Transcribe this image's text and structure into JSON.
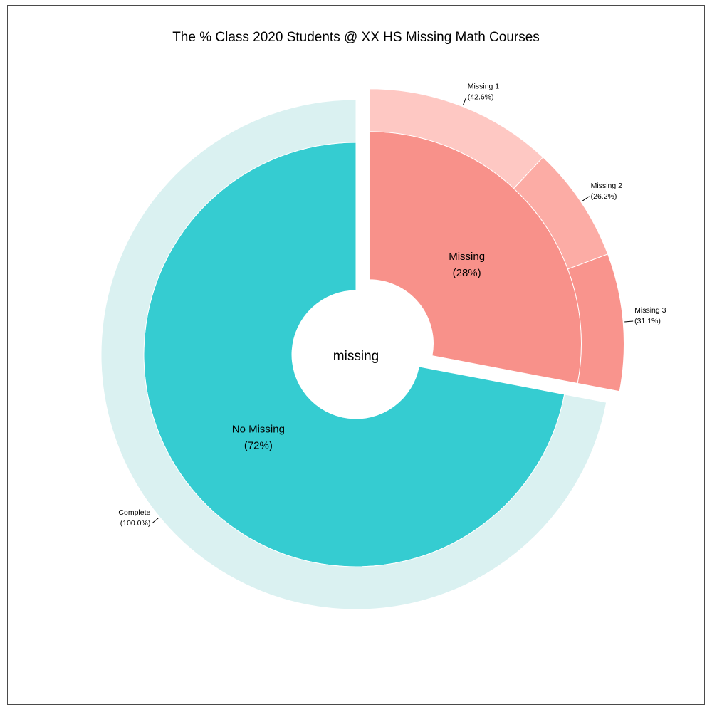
{
  "chart_data": {
    "type": "pie",
    "title": "The % Class 2020 Students @ XX HS Missing Math Courses",
    "center_label": "missing",
    "inner": [
      {
        "name": "Missing",
        "pct_label": "(28%)",
        "value": 28,
        "color": "#F8918A"
      },
      {
        "name": "No Missing",
        "pct_label": "(72%)",
        "value": 72,
        "color": "#35CCD1"
      }
    ],
    "outer": [
      {
        "name": "Missing 1",
        "pct_label": "(42.6%)",
        "value": 42.6,
        "parent": "Missing",
        "color": "#FEC8C3"
      },
      {
        "name": "Missing 2",
        "pct_label": "(26.2%)",
        "value": 26.2,
        "parent": "Missing",
        "color": "#FCACA5"
      },
      {
        "name": "Missing 3",
        "pct_label": "(31.1%)",
        "value": 31.1,
        "parent": "Missing",
        "color": "#F9948D"
      },
      {
        "name": "Complete",
        "pct_label": "(100.0%)",
        "value": 100.0,
        "parent": "No Missing",
        "color": "#DAF1F1"
      }
    ]
  }
}
